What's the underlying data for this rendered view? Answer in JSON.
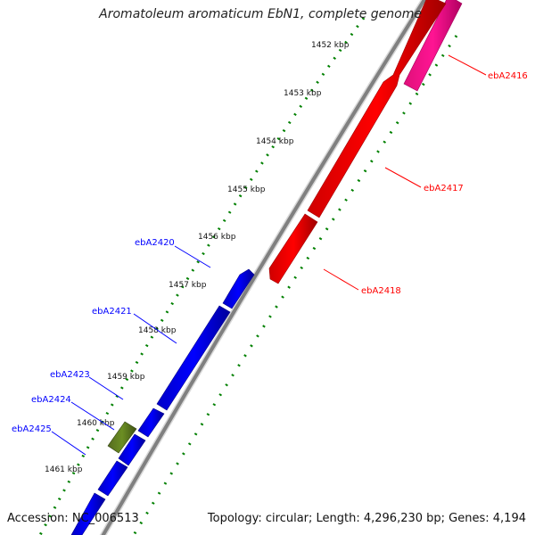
{
  "title": "Aromatoleum aromaticum EbN1, complete genome",
  "footer": {
    "accession": "Accession: NC_006513",
    "topology": "Topology: circular; Length: 4,296,230 bp; Genes: 4,194"
  },
  "ticks": [
    {
      "label": "1452 kbp"
    },
    {
      "label": "1453 kbp"
    },
    {
      "label": "1454 kbp"
    },
    {
      "label": "1455 kbp"
    },
    {
      "label": "1456 kbp"
    },
    {
      "label": "1457 kbp"
    },
    {
      "label": "1458 kbp"
    },
    {
      "label": "1459 kbp"
    },
    {
      "label": "1460 kbp"
    },
    {
      "label": "1461 kbp"
    }
  ],
  "genes": [
    {
      "name": "ebA2416",
      "strand": "reverse",
      "color": "#ff1493"
    },
    {
      "name": "ebA2417",
      "strand": "reverse",
      "color": "#ff0000"
    },
    {
      "name": "ebA2418",
      "strand": "reverse",
      "color": "#ff0000"
    },
    {
      "name": "ebA2420",
      "strand": "forward",
      "color": "#0000ff"
    },
    {
      "name": "ebA2421",
      "strand": "forward",
      "color": "#0000ff"
    },
    {
      "name": "ebA2423",
      "strand": "forward",
      "color": "#0000ff"
    },
    {
      "name": "ebA2424",
      "strand": "forward",
      "color": "#6b8e23"
    },
    {
      "name": "ebA2425",
      "strand": "forward",
      "color": "#0000ff"
    }
  ],
  "colors": {
    "forward": "#0000ff",
    "reverse": "#ff0000",
    "rna": "#6b8e23",
    "backbone": "#808080",
    "ticks": "#008000"
  }
}
